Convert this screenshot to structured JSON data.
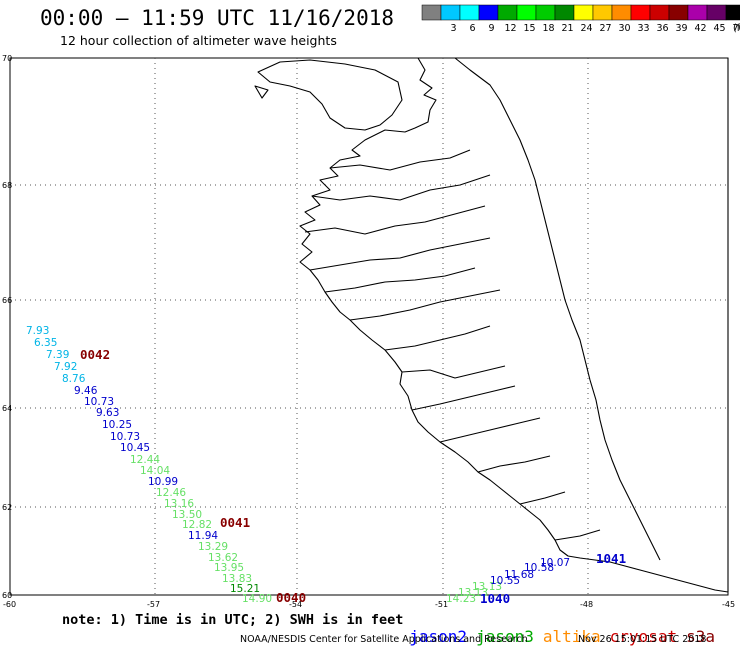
{
  "header": {
    "title": "00:00 – 11:59 UTC 11/16/2018",
    "subtitle": "12 hour collection of altimeter wave heights"
  },
  "color_scale": {
    "unit": "(ft)",
    "bins": [
      {
        "label": "",
        "color": "#808080"
      },
      {
        "label": "3",
        "color": "#00c8ff"
      },
      {
        "label": "6",
        "color": "#00ffff"
      },
      {
        "label": "9",
        "color": "#0000ff"
      },
      {
        "label": "12",
        "color": "#00aa00"
      },
      {
        "label": "15",
        "color": "#00ff00"
      },
      {
        "label": "18",
        "color": "#00cc00"
      },
      {
        "label": "21",
        "color": "#008800"
      },
      {
        "label": "24",
        "color": "#ffff00"
      },
      {
        "label": "27",
        "color": "#ffc800"
      },
      {
        "label": "30",
        "color": "#ff8c00"
      },
      {
        "label": "33",
        "color": "#ff0000"
      },
      {
        "label": "36",
        "color": "#cc0000"
      },
      {
        "label": "39",
        "color": "#880000"
      },
      {
        "label": "42",
        "color": "#aa00aa"
      },
      {
        "label": "45",
        "color": "#660066"
      },
      {
        "label": "70",
        "color": "#000000"
      }
    ]
  },
  "axes": {
    "lat_labels": [
      "70",
      "68",
      "66",
      "64",
      "62",
      "60"
    ],
    "lon_labels": [
      "-60",
      "-57",
      "-54",
      "-51",
      "-48",
      "-45"
    ]
  },
  "observations": [
    {
      "value": "7.93",
      "color": "#00b4e6"
    },
    {
      "value": "6.35",
      "color": "#00b4e6"
    },
    {
      "value": "7.39",
      "color": "#00b4e6"
    },
    {
      "value": "7.92",
      "color": "#00b4e6"
    },
    {
      "value": "8.76",
      "color": "#00b4e6"
    },
    {
      "value": "9.46",
      "color": "#0000cc"
    },
    {
      "value": "10.73",
      "color": "#0000cc"
    },
    {
      "value": "9.63",
      "color": "#0000cc"
    },
    {
      "value": "10.25",
      "color": "#0000cc"
    },
    {
      "value": "10.73",
      "color": "#0000cc"
    },
    {
      "value": "10.45",
      "color": "#0000cc"
    },
    {
      "value": "12.44",
      "color": "#66e066"
    },
    {
      "value": "14.04",
      "color": "#66e066"
    },
    {
      "value": "10.99",
      "color": "#0000cc"
    },
    {
      "value": "12.46",
      "color": "#66e066"
    },
    {
      "value": "13.16",
      "color": "#66e066"
    },
    {
      "value": "13.50",
      "color": "#66e066"
    },
    {
      "value": "12.82",
      "color": "#66e066"
    },
    {
      "value": "11.94",
      "color": "#0000cc"
    },
    {
      "value": "13.29",
      "color": "#66e066"
    },
    {
      "value": "13.62",
      "color": "#66e066"
    },
    {
      "value": "13.95",
      "color": "#66e066"
    },
    {
      "value": "13.83",
      "color": "#66e066"
    },
    {
      "value": "15.21",
      "color": "#008800"
    },
    {
      "value": "14.90",
      "color": "#66e066"
    },
    {
      "value": "14.23",
      "color": "#66e066"
    },
    {
      "value": "13.13",
      "color": "#66e066"
    },
    {
      "value": "13.13",
      "color": "#66e066"
    },
    {
      "value": "10.55",
      "color": "#0000cc"
    },
    {
      "value": "11.68",
      "color": "#0000cc"
    },
    {
      "value": "10.58",
      "color": "#0000cc"
    },
    {
      "value": "10.07",
      "color": "#0000cc"
    }
  ],
  "passes": [
    {
      "label": "0042",
      "color": "#880000"
    },
    {
      "label": "0041",
      "color": "#880000"
    },
    {
      "label": "0040",
      "color": "#880000"
    },
    {
      "label": "1040",
      "color": "#0000cc"
    },
    {
      "label": "1041",
      "color": "#0000cc"
    }
  ],
  "footer": {
    "note": "note: 1) Time is in UTC; 2) SWH is in feet",
    "legend": [
      {
        "label": "jason2",
        "color": "#0000ff"
      },
      {
        "label": "jason3",
        "color": "#00aa00"
      },
      {
        "label": "altika",
        "color": "#ff8c00"
      },
      {
        "label": "cryosat",
        "color": "#cc0000"
      },
      {
        "label": "s3a",
        "color": "#880000"
      }
    ],
    "credit": "NOAA/NESDIS Center for Satellite Applications and Research",
    "timestamp": "Nov 26 15:01:15 UTC 2018"
  }
}
